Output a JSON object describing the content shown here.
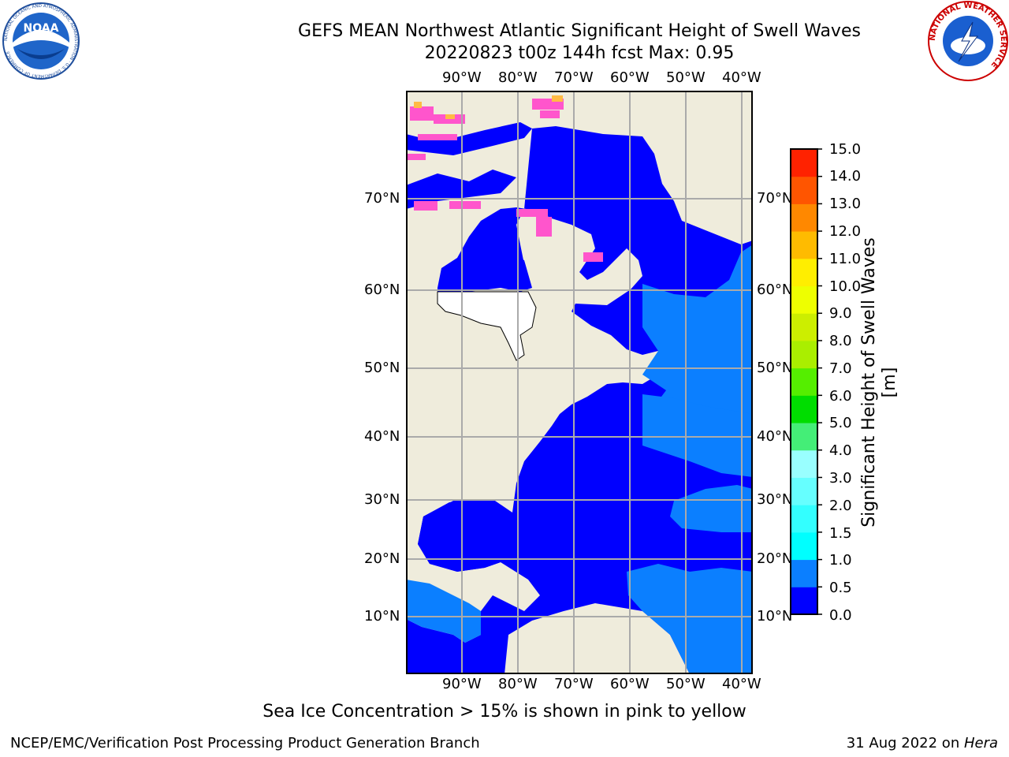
{
  "title": {
    "line1": "GEFS MEAN Northwest Atlantic Significant Height of Swell Waves",
    "line2": "20220823 t00z 144h fcst   Max: 0.95"
  },
  "logos": {
    "noaa_text": "NOAA",
    "noaa_ring": "NATIONAL OCEANIC AND ATMOSPHERIC ADMINISTRATION · U.S. DEPARTMENT OF COMMERCE",
    "nws_ring": "NATIONAL WEATHER SERVICE"
  },
  "map": {
    "lon_labels": [
      "90°W",
      "80°W",
      "70°W",
      "60°W",
      "50°W",
      "40°W"
    ],
    "lat_labels": [
      "70°N",
      "60°N",
      "50°N",
      "40°N",
      "30°N",
      "20°N",
      "10°N"
    ],
    "colors": {
      "ocean": "#0000ff",
      "ocean_light": "#0b7fff",
      "land": "#efecdc",
      "ice": "#ff55cc",
      "grid": "#aaaaaa"
    }
  },
  "colorbar": {
    "label": "Significant Height of Swell Waves [m]",
    "ticks": [
      "0.0",
      "0.5",
      "1.0",
      "1.5",
      "2.0",
      "3.0",
      "4.0",
      "5.0",
      "6.0",
      "7.0",
      "8.0",
      "9.0",
      "10.0",
      "11.0",
      "12.0",
      "13.0",
      "14.0",
      "15.0"
    ],
    "colors": [
      "#0000ff",
      "#0b7fff",
      "#00ffff",
      "#33ffff",
      "#66ffff",
      "#99ffff",
      "#44ee77",
      "#00dd00",
      "#55ee00",
      "#aaee00",
      "#ccee00",
      "#eeff00",
      "#ffee00",
      "#ffbb00",
      "#ff8800",
      "#ff5500",
      "#ff2200",
      "#ff0000"
    ]
  },
  "note": "Sea Ice Concentration > 15% is shown in pink to yellow",
  "footer": {
    "left": "NCEP/EMC/Verification Post Processing Product Generation Branch",
    "date": "31 Aug 2022 on ",
    "host": "Hera"
  }
}
